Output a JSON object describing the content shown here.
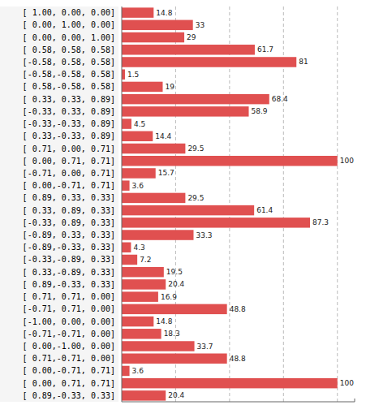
{
  "chart_data": {
    "type": "bar",
    "orientation": "horizontal",
    "categories": [
      "[ 1.00, 0.00, 0.00]",
      "[ 0.00, 1.00, 0.00]",
      "[ 0.00, 0.00, 1.00]",
      "[ 0.58, 0.58, 0.58]",
      "[-0.58, 0.58, 0.58]",
      "[-0.58,-0.58, 0.58]",
      "[ 0.58,-0.58, 0.58]",
      "[ 0.33, 0.33, 0.89]",
      "[-0.33, 0.33, 0.89]",
      "[-0.33,-0.33, 0.89]",
      "[ 0.33,-0.33, 0.89]",
      "[ 0.71, 0.00, 0.71]",
      "[ 0.00, 0.71, 0.71]",
      "[-0.71, 0.00, 0.71]",
      "[ 0.00,-0.71, 0.71]",
      "[ 0.89, 0.33, 0.33]",
      "[ 0.33, 0.89, 0.33]",
      "[-0.33, 0.89, 0.33]",
      "[-0.89, 0.33, 0.33]",
      "[-0.89,-0.33, 0.33]",
      "[-0.33,-0.89, 0.33]",
      "[ 0.33,-0.89, 0.33]",
      "[ 0.89,-0.33, 0.33]",
      "[ 0.71, 0.71, 0.00]",
      "[-0.71, 0.71, 0.00]",
      "[-1.00, 0.00, 0.00]",
      "[-0.71,-0.71, 0.00]",
      "[ 0.00,-1.00, 0.00]",
      "[ 0.71,-0.71, 0.00]",
      "[ 0.00,-0.71, 0.71]",
      "[ 0.00, 0.71, 0.71]",
      "[ 0.89,-0.33, 0.33]"
    ],
    "values": [
      14.8,
      33,
      29,
      61.7,
      81,
      1.5,
      19,
      68.4,
      58.9,
      4.5,
      14.4,
      29.5,
      100,
      15.7,
      3.6,
      29.5,
      61.4,
      87.3,
      33.3,
      4.3,
      7.2,
      19.5,
      20.4,
      16.9,
      48.8,
      14.8,
      18.3,
      33.7,
      48.8,
      3.6,
      100,
      20.4
    ],
    "color": "#e05050",
    "xlim": [
      0,
      108
    ],
    "xticks": [
      25,
      50,
      75,
      100
    ],
    "grid": true,
    "data_labels": true,
    "tick_labels": "y"
  }
}
